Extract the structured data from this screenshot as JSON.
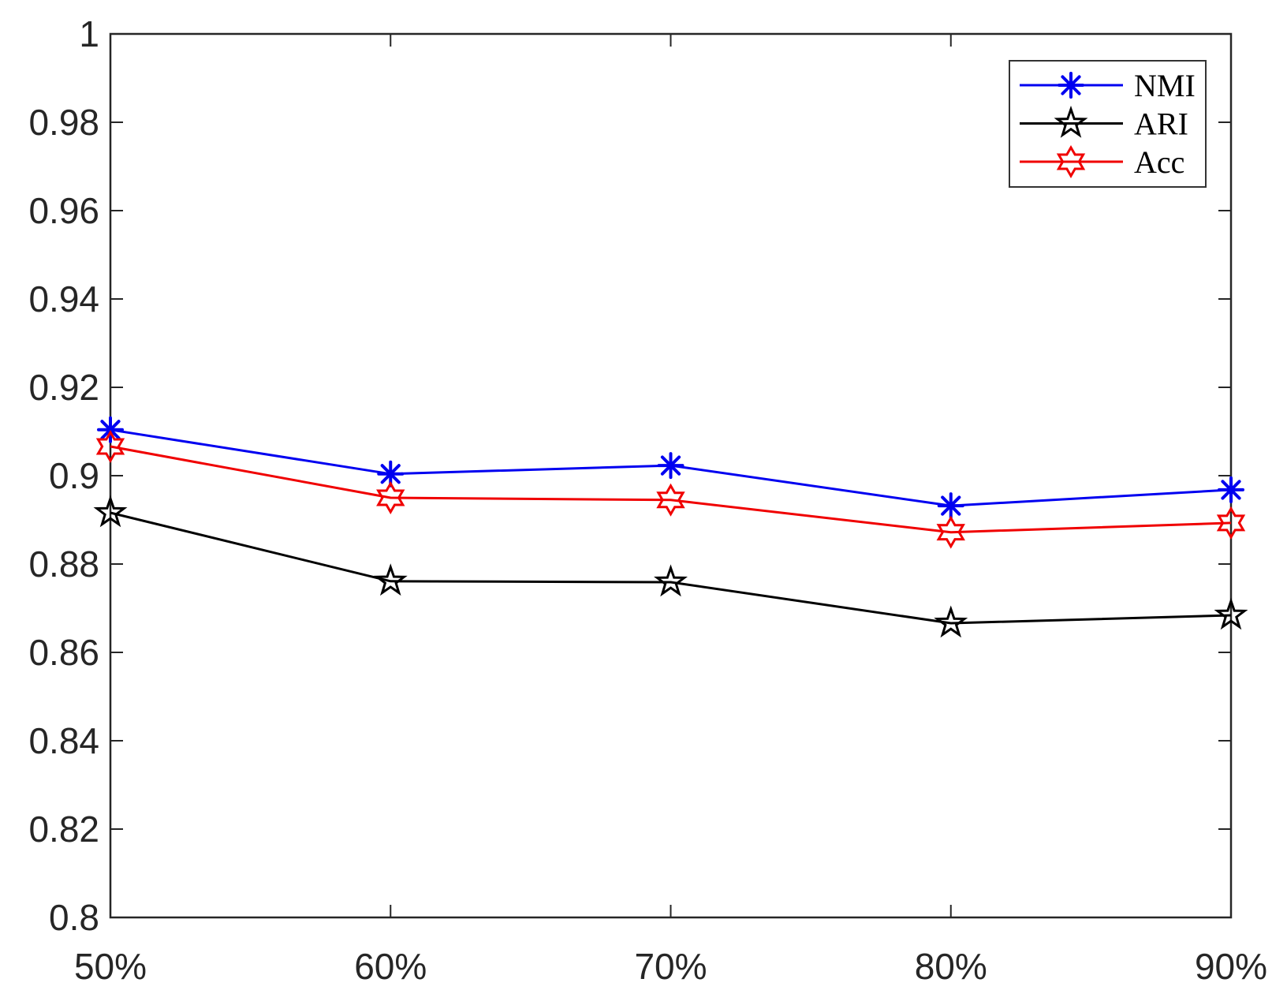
{
  "chart_data": {
    "type": "line",
    "title": "",
    "subtitle": "",
    "xlabel": "",
    "ylabel": "",
    "categories": [
      "50%",
      "60%",
      "70%",
      "80%",
      "90%"
    ],
    "series": [
      {
        "name": "NMI",
        "color": "#0000f0",
        "marker": "asterisk",
        "values": [
          0.9104,
          0.9004,
          0.9023,
          0.8932,
          0.8968
        ]
      },
      {
        "name": "ARI",
        "color": "#000000",
        "marker": "pentagram",
        "values": [
          0.8916,
          0.8761,
          0.8759,
          0.8666,
          0.8684
        ]
      },
      {
        "name": "Acc",
        "color": "#f00000",
        "marker": "hexagram",
        "values": [
          0.9066,
          0.895,
          0.8945,
          0.8872,
          0.8893
        ]
      }
    ],
    "ylim": [
      0.8,
      1.0
    ],
    "ytick_step": 0.02,
    "ytick_labels": [
      "0.8",
      "0.82",
      "0.84",
      "0.86",
      "0.88",
      "0.9",
      "0.92",
      "0.94",
      "0.96",
      "0.98",
      "1"
    ],
    "legend_position": "top-right",
    "grid": false,
    "axis_color": "#262626",
    "legend_border_color": "#333333",
    "background": "#ffffff"
  }
}
